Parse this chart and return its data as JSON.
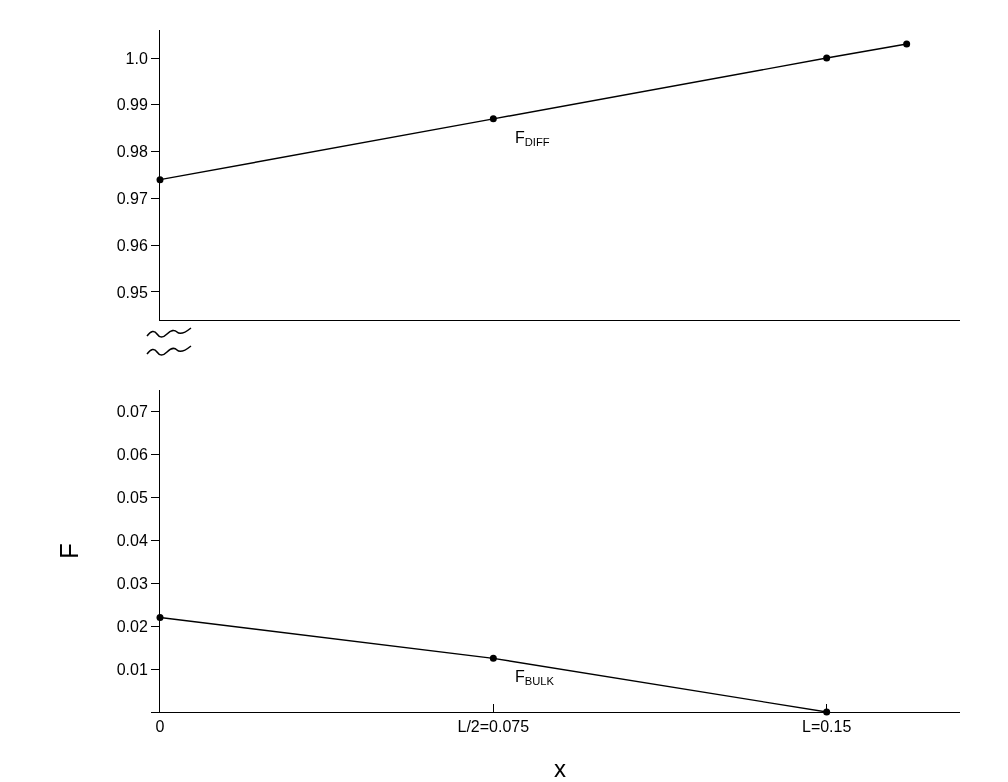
{
  "chart_data": [
    {
      "type": "line",
      "xlim": [
        0,
        0.18
      ],
      "ylim": [
        0.944,
        1.006
      ],
      "yticks": [
        {
          "value": 1.0,
          "label": "1.0"
        },
        0.99,
        0.98,
        0.97,
        0.96,
        0.95
      ],
      "tick_labels": "y",
      "grid": false,
      "legend": false,
      "marker": "circle",
      "line_style": "solid",
      "series": [
        {
          "name": "F$_{DIFF}$",
          "color": "#000000",
          "x": [
            0,
            0.075,
            0.15,
            0.168
          ],
          "values": [
            0.974,
            0.987,
            1.0,
            1.003
          ]
        }
      ]
    },
    {
      "type": "line",
      "xlabel": "x",
      "ylabel": "F",
      "xlim": [
        0,
        0.18
      ],
      "xticks": [
        {
          "value": 0,
          "label": "0"
        },
        {
          "value": 0.075,
          "label": "L/2=0.075"
        },
        {
          "value": 0.15,
          "label": "L=0.15"
        }
      ],
      "ylim": [
        0,
        0.075
      ],
      "yticks": [
        {
          "value": 0,
          "label": null
        },
        0.01,
        0.02,
        0.03,
        0.04,
        0.05,
        0.06,
        0.07
      ],
      "grid": false,
      "legend": false,
      "marker": "circle",
      "line_style": "solid",
      "series": [
        {
          "name": "F$_{BULK}$",
          "color": "#000000",
          "x": [
            0,
            0.075,
            0.15
          ],
          "values": [
            0.022,
            0.0125,
            0
          ]
        }
      ]
    }
  ]
}
